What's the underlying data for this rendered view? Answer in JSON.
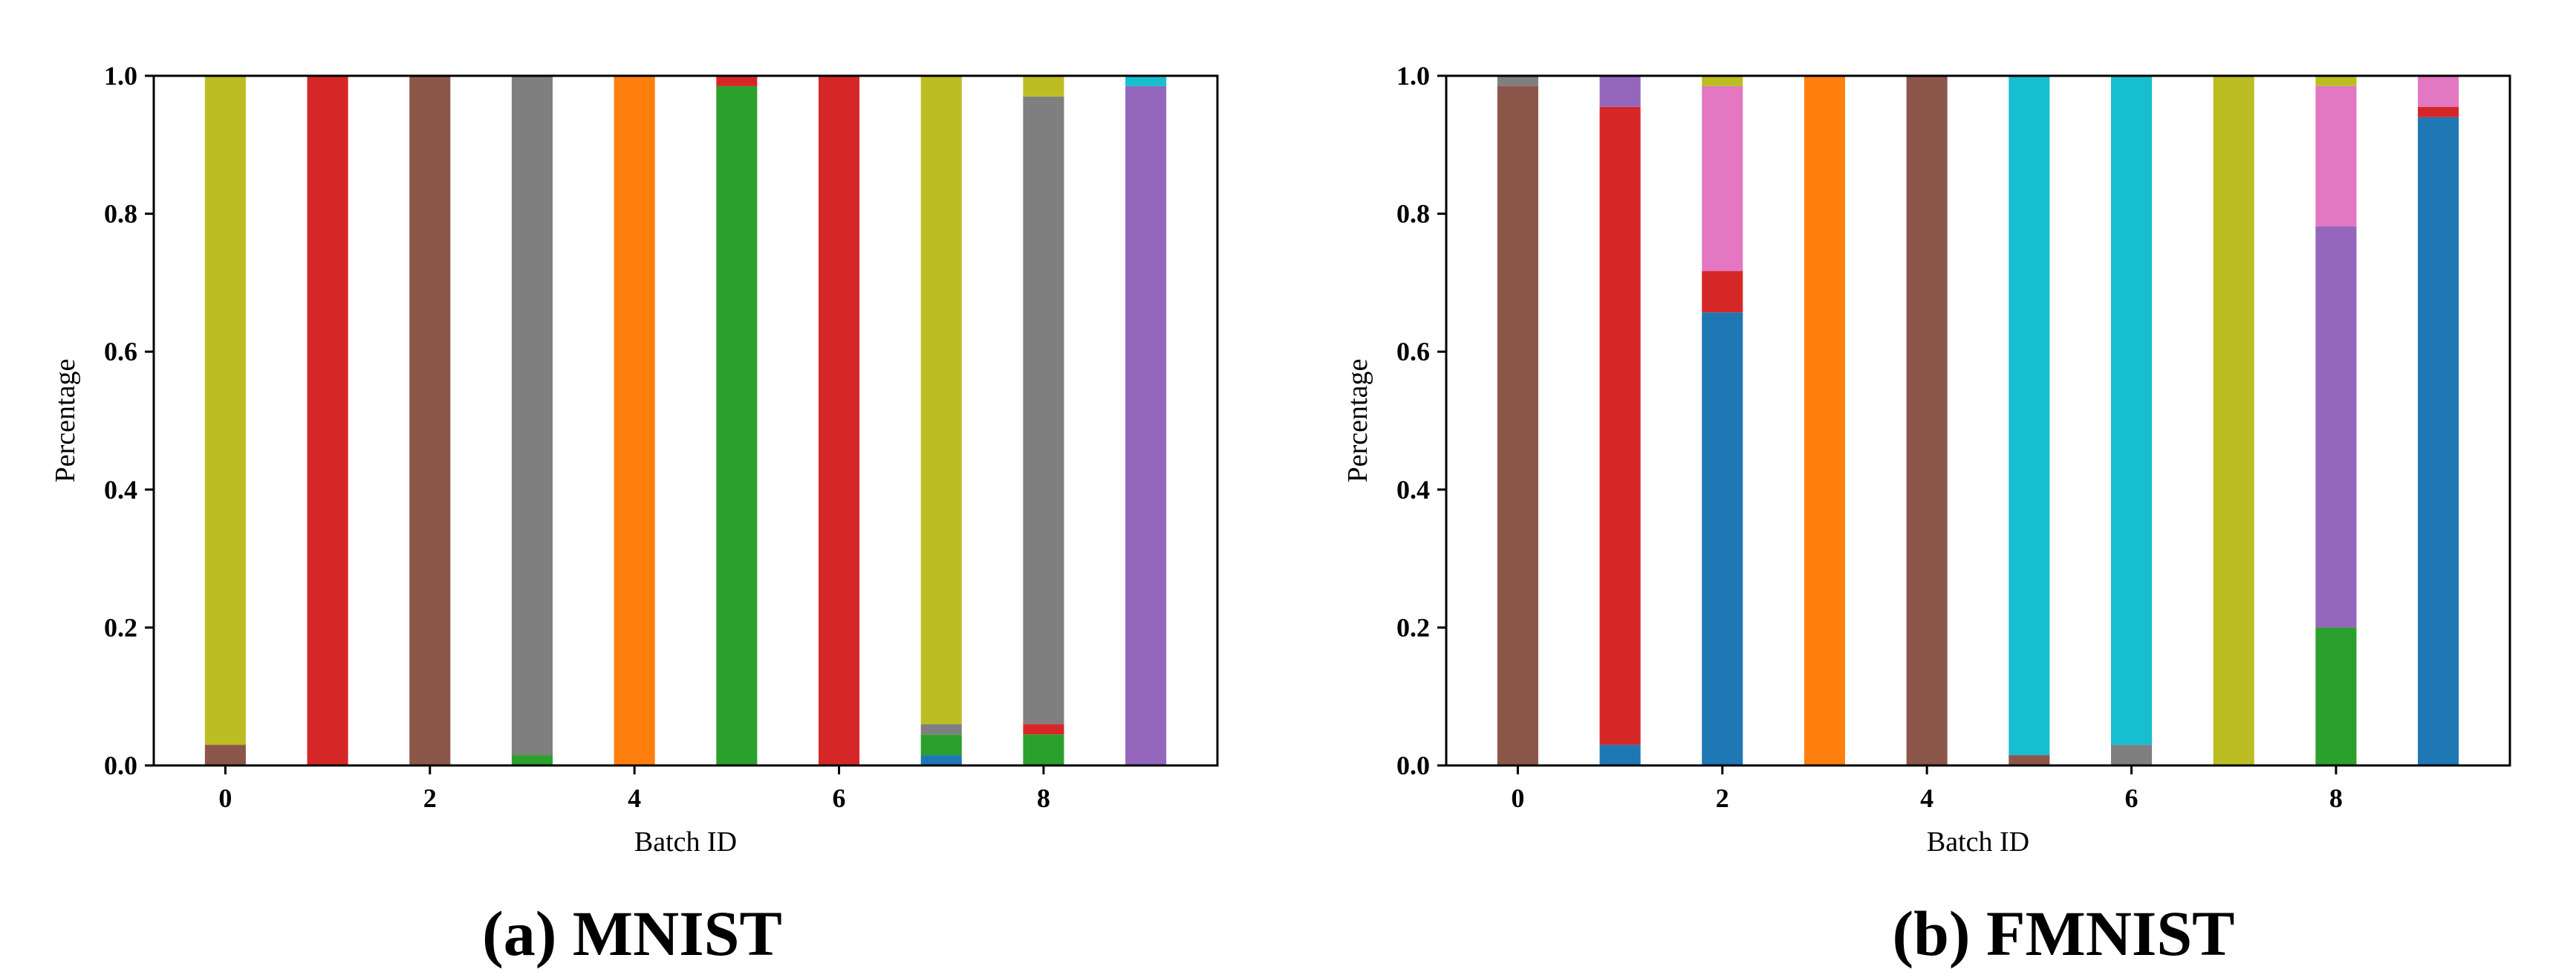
{
  "palette": {
    "0": "#1f77b4",
    "1": "#ff7f0e",
    "2": "#2ca02c",
    "3": "#d62728",
    "4": "#9467bd",
    "5": "#8c564b",
    "6": "#e377c2",
    "7": "#7f7f7f",
    "8": "#bcbd22",
    "9": "#17becf"
  },
  "chart_data": [
    {
      "type": "bar",
      "stacked": true,
      "caption": "(a) MNIST",
      "xlabel": "Batch ID",
      "ylabel": "Percentage",
      "xlim": [
        -0.7,
        9.7
      ],
      "ylim": [
        0,
        1.0
      ],
      "xticks": [
        "0",
        "2",
        "4",
        "6",
        "8"
      ],
      "yticks": [
        "0.0",
        "0.2",
        "0.4",
        "0.6",
        "0.8",
        "1.0"
      ],
      "batches": [
        {
          "id": 0,
          "segments": [
            {
              "cls": 5,
              "value": 0.03
            },
            {
              "cls": 8,
              "value": 0.97
            }
          ]
        },
        {
          "id": 1,
          "segments": [
            {
              "cls": 3,
              "value": 1.0
            }
          ]
        },
        {
          "id": 2,
          "segments": [
            {
              "cls": 5,
              "value": 1.0
            }
          ]
        },
        {
          "id": 3,
          "segments": [
            {
              "cls": 2,
              "value": 0.015
            },
            {
              "cls": 7,
              "value": 0.985
            }
          ]
        },
        {
          "id": 4,
          "segments": [
            {
              "cls": 1,
              "value": 1.0
            }
          ]
        },
        {
          "id": 5,
          "segments": [
            {
              "cls": 2,
              "value": 0.985
            },
            {
              "cls": 3,
              "value": 0.015
            }
          ]
        },
        {
          "id": 6,
          "segments": [
            {
              "cls": 3,
              "value": 1.0
            }
          ]
        },
        {
          "id": 7,
          "segments": [
            {
              "cls": 0,
              "value": 0.015
            },
            {
              "cls": 2,
              "value": 0.03
            },
            {
              "cls": 8,
              "value": 0.0
            },
            {
              "cls": 7,
              "value": 0.015
            },
            {
              "cls": 8,
              "value": 0.94
            }
          ]
        },
        {
          "id": 8,
          "segments": [
            {
              "cls": 2,
              "value": 0.045
            },
            {
              "cls": 3,
              "value": 0.015
            },
            {
              "cls": 7,
              "value": 0.91
            },
            {
              "cls": 8,
              "value": 0.03
            }
          ]
        },
        {
          "id": 9,
          "segments": [
            {
              "cls": 4,
              "value": 0.985
            },
            {
              "cls": 9,
              "value": 0.015
            }
          ]
        }
      ]
    },
    {
      "type": "bar",
      "stacked": true,
      "caption": "(b) FMNIST",
      "xlabel": "Batch ID",
      "ylabel": "Percentage",
      "xlim": [
        -0.7,
        9.7
      ],
      "ylim": [
        0,
        1.0
      ],
      "xticks": [
        "0",
        "2",
        "4",
        "6",
        "8"
      ],
      "yticks": [
        "0.0",
        "0.2",
        "0.4",
        "0.6",
        "0.8",
        "1.0"
      ],
      "batches": [
        {
          "id": 0,
          "segments": [
            {
              "cls": 5,
              "value": 0.985
            },
            {
              "cls": 7,
              "value": 0.015
            }
          ]
        },
        {
          "id": 1,
          "segments": [
            {
              "cls": 0,
              "value": 0.03
            },
            {
              "cls": 3,
              "value": 0.925
            },
            {
              "cls": 4,
              "value": 0.045
            }
          ]
        },
        {
          "id": 2,
          "segments": [
            {
              "cls": 0,
              "value": 0.657
            },
            {
              "cls": 3,
              "value": 0.06
            },
            {
              "cls": 6,
              "value": 0.268
            },
            {
              "cls": 8,
              "value": 0.015
            }
          ]
        },
        {
          "id": 3,
          "segments": [
            {
              "cls": 1,
              "value": 1.0
            }
          ]
        },
        {
          "id": 4,
          "segments": [
            {
              "cls": 5,
              "value": 1.0
            }
          ]
        },
        {
          "id": 5,
          "segments": [
            {
              "cls": 5,
              "value": 0.015
            },
            {
              "cls": 9,
              "value": 0.985
            }
          ]
        },
        {
          "id": 6,
          "segments": [
            {
              "cls": 7,
              "value": 0.03
            },
            {
              "cls": 9,
              "value": 0.97
            }
          ]
        },
        {
          "id": 7,
          "segments": [
            {
              "cls": 8,
              "value": 1.0
            }
          ]
        },
        {
          "id": 8,
          "segments": [
            {
              "cls": 2,
              "value": 0.2
            },
            {
              "cls": 4,
              "value": 0.582
            },
            {
              "cls": 6,
              "value": 0.203
            },
            {
              "cls": 8,
              "value": 0.015
            }
          ]
        },
        {
          "id": 9,
          "segments": [
            {
              "cls": 0,
              "value": 0.94
            },
            {
              "cls": 3,
              "value": 0.015
            },
            {
              "cls": 6,
              "value": 0.045
            }
          ]
        }
      ]
    }
  ]
}
